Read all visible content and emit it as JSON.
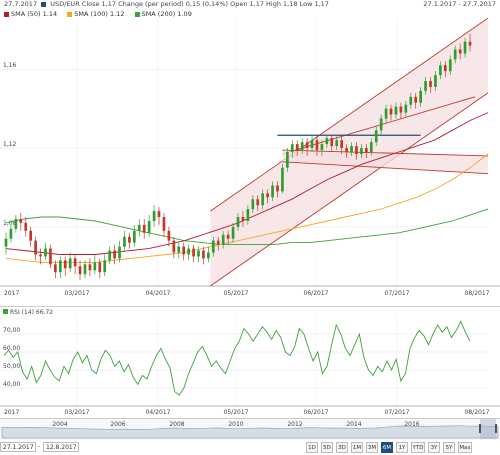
{
  "header": {
    "date_left": "27.7.2017",
    "instrument_line": "USD/EUR Close 1,17 Change (per period) 0,15 (0,14%) Open 1,17 High 1,18 Low 1,17",
    "date_right": "27.1.2017 - 27.7.2017"
  },
  "legend": [
    {
      "label": "SMA (50) 1.14",
      "color": "#b01c2e"
    },
    {
      "label": "SMA (100) 1.12",
      "color": "#f5a623"
    },
    {
      "label": "SMA (200) 1.09",
      "color": "#3aa33a"
    }
  ],
  "rsi_legend": {
    "label": "RSI (14) 66.72",
    "color": "#3aa33a"
  },
  "colors": {
    "up": "#2e9e2e",
    "down": "#c0392b",
    "channel": "#c0392b",
    "channel_fill": "#f6dfe0",
    "resistance": "#1f4e79",
    "rsi": "#3aa33a",
    "nav": "#9aa7b5"
  },
  "chart_data": [
    {
      "type": "candlestick",
      "title": "USD/EUR",
      "ylim": [
        1.05,
        1.186
      ],
      "y_ticks": [
        1.16,
        1.12,
        1.08
      ],
      "y_tick_labels": [
        "1,16",
        "1,12",
        "1,08"
      ],
      "x_labels": [
        "2017",
        "03/2017",
        "04/2017",
        "05/2017",
        "06/2017",
        "07/2017",
        "08/2017"
      ],
      "candles": [
        [
          1.07,
          1.074,
          1.066,
          1.077
        ],
        [
          1.074,
          1.079,
          1.072,
          1.081
        ],
        [
          1.079,
          1.084,
          1.077,
          1.086
        ],
        [
          1.084,
          1.082,
          1.078,
          1.087
        ],
        [
          1.082,
          1.078,
          1.075,
          1.085
        ],
        [
          1.078,
          1.073,
          1.07,
          1.08
        ],
        [
          1.073,
          1.066,
          1.063,
          1.075
        ],
        [
          1.066,
          1.065,
          1.061,
          1.069
        ],
        [
          1.065,
          1.069,
          1.063,
          1.072
        ],
        [
          1.069,
          1.061,
          1.059,
          1.071
        ],
        [
          1.061,
          1.057,
          1.054,
          1.063
        ],
        [
          1.057,
          1.063,
          1.054,
          1.065
        ],
        [
          1.063,
          1.059,
          1.055,
          1.065
        ],
        [
          1.059,
          1.064,
          1.057,
          1.067
        ],
        [
          1.064,
          1.06,
          1.056,
          1.066
        ],
        [
          1.06,
          1.056,
          1.053,
          1.063
        ],
        [
          1.056,
          1.061,
          1.054,
          1.063
        ],
        [
          1.061,
          1.058,
          1.055,
          1.064
        ],
        [
          1.058,
          1.062,
          1.056,
          1.066
        ],
        [
          1.062,
          1.057,
          1.054,
          1.064
        ],
        [
          1.057,
          1.063,
          1.055,
          1.066
        ],
        [
          1.063,
          1.068,
          1.061,
          1.07
        ],
        [
          1.068,
          1.064,
          1.061,
          1.071
        ],
        [
          1.064,
          1.07,
          1.062,
          1.073
        ],
        [
          1.07,
          1.075,
          1.068,
          1.078
        ],
        [
          1.075,
          1.072,
          1.069,
          1.077
        ],
        [
          1.072,
          1.078,
          1.07,
          1.081
        ],
        [
          1.078,
          1.081,
          1.075,
          1.084
        ],
        [
          1.081,
          1.077,
          1.074,
          1.084
        ],
        [
          1.077,
          1.083,
          1.075,
          1.086
        ],
        [
          1.083,
          1.088,
          1.08,
          1.091
        ],
        [
          1.088,
          1.085,
          1.081,
          1.09
        ],
        [
          1.085,
          1.078,
          1.075,
          1.087
        ],
        [
          1.078,
          1.073,
          1.07,
          1.08
        ],
        [
          1.073,
          1.067,
          1.064,
          1.075
        ],
        [
          1.067,
          1.07,
          1.064,
          1.072
        ],
        [
          1.07,
          1.066,
          1.063,
          1.072
        ],
        [
          1.066,
          1.069,
          1.063,
          1.071
        ],
        [
          1.069,
          1.065,
          1.062,
          1.071
        ],
        [
          1.065,
          1.068,
          1.062,
          1.07
        ],
        [
          1.068,
          1.064,
          1.061,
          1.07
        ],
        [
          1.064,
          1.067,
          1.062,
          1.07
        ],
        [
          1.067,
          1.073,
          1.065,
          1.075
        ],
        [
          1.073,
          1.071,
          1.068,
          1.075
        ],
        [
          1.071,
          1.076,
          1.069,
          1.078
        ],
        [
          1.076,
          1.074,
          1.071,
          1.078
        ],
        [
          1.074,
          1.08,
          1.072,
          1.082
        ],
        [
          1.08,
          1.085,
          1.078,
          1.087
        ],
        [
          1.085,
          1.083,
          1.08,
          1.088
        ],
        [
          1.083,
          1.089,
          1.081,
          1.091
        ],
        [
          1.089,
          1.094,
          1.087,
          1.096
        ],
        [
          1.094,
          1.091,
          1.088,
          1.096
        ],
        [
          1.091,
          1.097,
          1.089,
          1.099
        ],
        [
          1.097,
          1.095,
          1.092,
          1.099
        ],
        [
          1.095,
          1.101,
          1.093,
          1.103
        ],
        [
          1.101,
          1.098,
          1.095,
          1.103
        ],
        [
          1.098,
          1.11,
          1.097,
          1.112
        ],
        [
          1.11,
          1.118,
          1.108,
          1.12
        ],
        [
          1.118,
          1.122,
          1.115,
          1.124
        ],
        [
          1.122,
          1.119,
          1.116,
          1.124
        ],
        [
          1.119,
          1.123,
          1.117,
          1.125
        ],
        [
          1.123,
          1.12,
          1.116,
          1.125
        ],
        [
          1.12,
          1.124,
          1.118,
          1.126
        ],
        [
          1.124,
          1.119,
          1.116,
          1.126
        ],
        [
          1.119,
          1.122,
          1.116,
          1.124
        ],
        [
          1.122,
          1.125,
          1.12,
          1.127
        ],
        [
          1.125,
          1.121,
          1.118,
          1.127
        ],
        [
          1.121,
          1.124,
          1.119,
          1.126
        ],
        [
          1.124,
          1.12,
          1.117,
          1.126
        ],
        [
          1.12,
          1.118,
          1.115,
          1.122
        ],
        [
          1.118,
          1.121,
          1.116,
          1.123
        ],
        [
          1.121,
          1.117,
          1.114,
          1.123
        ],
        [
          1.117,
          1.12,
          1.115,
          1.122
        ],
        [
          1.12,
          1.118,
          1.115,
          1.122
        ],
        [
          1.118,
          1.123,
          1.116,
          1.125
        ],
        [
          1.123,
          1.129,
          1.121,
          1.131
        ],
        [
          1.129,
          1.135,
          1.127,
          1.137
        ],
        [
          1.135,
          1.14,
          1.133,
          1.142
        ],
        [
          1.14,
          1.137,
          1.134,
          1.142
        ],
        [
          1.137,
          1.141,
          1.135,
          1.143
        ],
        [
          1.141,
          1.138,
          1.135,
          1.143
        ],
        [
          1.138,
          1.142,
          1.136,
          1.144
        ],
        [
          1.142,
          1.146,
          1.14,
          1.148
        ],
        [
          1.146,
          1.143,
          1.14,
          1.148
        ],
        [
          1.143,
          1.149,
          1.141,
          1.151
        ],
        [
          1.149,
          1.154,
          1.147,
          1.156
        ],
        [
          1.154,
          1.151,
          1.148,
          1.156
        ],
        [
          1.151,
          1.157,
          1.149,
          1.159
        ],
        [
          1.157,
          1.162,
          1.155,
          1.164
        ],
        [
          1.162,
          1.159,
          1.156,
          1.164
        ],
        [
          1.159,
          1.165,
          1.157,
          1.167
        ],
        [
          1.165,
          1.17,
          1.163,
          1.172
        ],
        [
          1.17,
          1.168,
          1.165,
          1.173
        ],
        [
          1.168,
          1.174,
          1.166,
          1.176
        ],
        [
          1.174,
          1.172,
          1.169,
          1.178
        ]
      ],
      "sma50": [
        1.069,
        1.068,
        1.067,
        1.066,
        1.066,
        1.066,
        1.067,
        1.068,
        1.069,
        1.071,
        1.073,
        1.076,
        1.079,
        1.082,
        1.086,
        1.09,
        1.094,
        1.099,
        1.104,
        1.108,
        1.112,
        1.115,
        1.118,
        1.121,
        1.124,
        1.129,
        1.134,
        1.138
      ],
      "sma100": [
        1.064,
        1.063,
        1.062,
        1.062,
        1.062,
        1.062,
        1.063,
        1.064,
        1.065,
        1.066,
        1.067,
        1.069,
        1.071,
        1.073,
        1.075,
        1.077,
        1.079,
        1.081,
        1.083,
        1.085,
        1.087,
        1.089,
        1.092,
        1.095,
        1.099,
        1.104,
        1.11,
        1.117
      ],
      "sma200": [
        1.082,
        1.084,
        1.085,
        1.085,
        1.084,
        1.083,
        1.081,
        1.079,
        1.077,
        1.075,
        1.073,
        1.072,
        1.071,
        1.071,
        1.071,
        1.071,
        1.072,
        1.072,
        1.073,
        1.074,
        1.075,
        1.076,
        1.077,
        1.079,
        1.081,
        1.083,
        1.086,
        1.089
      ]
    },
    {
      "type": "line",
      "title": "RSI (14)",
      "ylim": [
        30,
        80
      ],
      "y_ticks": [
        70,
        60,
        50,
        40
      ],
      "y_tick_labels": [
        "70,00",
        "60,00",
        "50,00",
        "40,00"
      ],
      "x_labels": [
        "2017",
        "03/2017",
        "04/2017",
        "05/2017",
        "06/2017",
        "07/2017",
        "08/2017"
      ],
      "values": [
        58,
        61,
        57,
        60,
        49,
        45,
        52,
        43,
        47,
        55,
        50,
        46,
        44,
        52,
        48,
        56,
        60,
        54,
        58,
        50,
        48,
        56,
        61,
        58,
        52,
        55,
        49,
        53,
        46,
        42,
        47,
        45,
        52,
        58,
        62,
        56,
        51,
        38,
        36,
        40,
        48,
        54,
        60,
        63,
        58,
        52,
        55,
        51,
        48,
        55,
        62,
        66,
        73,
        70,
        66,
        70,
        74,
        71,
        67,
        72,
        68,
        60,
        58,
        63,
        73,
        70,
        62,
        55,
        60,
        48,
        52,
        64,
        75,
        70,
        62,
        58,
        64,
        70,
        57,
        50,
        47,
        52,
        49,
        55,
        50,
        56,
        44,
        48,
        62,
        68,
        72,
        69,
        64,
        70,
        75,
        71,
        74,
        68,
        72,
        77,
        71,
        66
      ]
    },
    {
      "type": "area",
      "title": "navigator",
      "x_labels": [
        "2004",
        "2006",
        "2008",
        "2010",
        "2012",
        "2014",
        "2016"
      ],
      "values": [
        0.82,
        0.8,
        0.78,
        0.8,
        0.79,
        0.77,
        0.74,
        0.72,
        0.7,
        0.68,
        0.66,
        0.65,
        0.64,
        0.66,
        0.63,
        0.62,
        0.65,
        0.7,
        0.75,
        0.73,
        0.71,
        0.7,
        0.73,
        0.76,
        0.72,
        0.68,
        0.7,
        0.73,
        0.75,
        0.72,
        0.7,
        0.71,
        0.75,
        0.78,
        0.77,
        0.74,
        0.74,
        0.73,
        0.72,
        0.73,
        0.75,
        0.82,
        0.9,
        0.92,
        0.89,
        0.88,
        0.9,
        0.91,
        0.92,
        0.94,
        0.9,
        0.92,
        0.89,
        0.87
      ]
    }
  ],
  "controls": {
    "from": "27.1.2017",
    "to": "12.8.2017",
    "ranges": [
      "1D",
      "5D",
      "3D",
      "1M",
      "3M",
      "6M",
      "1Y",
      "YTD",
      "3Y",
      "5Y",
      "Max"
    ],
    "active_range": "6M"
  }
}
